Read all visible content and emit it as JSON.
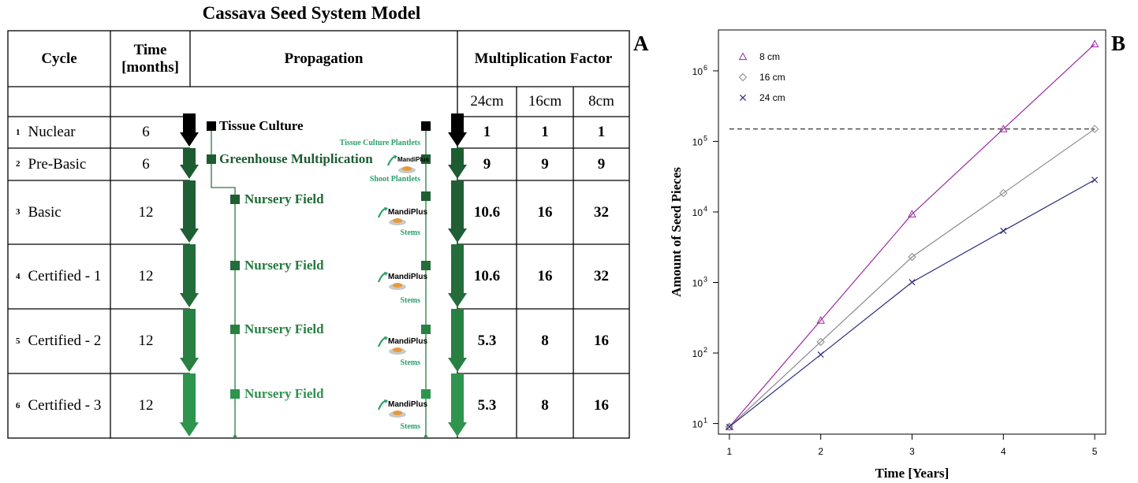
{
  "title": "Cassava Seed System Model",
  "panel_a": {
    "label": "A",
    "headers": {
      "cycle": "Cycle",
      "time_line1": "Time",
      "time_line2": "[months]",
      "propagation": "Propagation",
      "multiplication_factor": "Multiplication Factor",
      "sub": [
        "24cm",
        "16cm",
        "8cm"
      ]
    },
    "rows": [
      {
        "num": "1",
        "cycle": "Nuclear",
        "time": "6",
        "propagation": "Tissue Culture",
        "product": "Tissue Culture Plantlets",
        "factors": [
          "1",
          "1",
          "1"
        ],
        "color": "#000000"
      },
      {
        "num": "2",
        "cycle": "Pre-Basic",
        "time": "6",
        "propagation": "Greenhouse Multiplication",
        "product": "Shoot Plantlets",
        "factors": [
          "9",
          "9",
          "9"
        ],
        "color": "#1d5c31"
      },
      {
        "num": "3",
        "cycle": "Basic",
        "time": "12",
        "propagation": "Nursery Field",
        "product": "Stems",
        "factors": [
          "10.6",
          "16",
          "32"
        ],
        "color": "#1f5f33"
      },
      {
        "num": "4",
        "cycle": "Certified - 1",
        "time": "12",
        "propagation": "Nursery Field",
        "product": "Stems",
        "factors": [
          "10.6",
          "16",
          "32"
        ],
        "color": "#236d3a"
      },
      {
        "num": "5",
        "cycle": "Certified - 2",
        "time": "12",
        "propagation": "Nursery Field",
        "product": "Stems",
        "factors": [
          "5.3",
          "8",
          "16"
        ],
        "color": "#288043"
      },
      {
        "num": "6",
        "cycle": "Certified - 3",
        "time": "12",
        "propagation": "Nursery Field",
        "product": "Stems",
        "factors": [
          "5.3",
          "8",
          "16"
        ],
        "color": "#2e944e"
      }
    ],
    "logo_text": "MandiPlus"
  },
  "panel_b": {
    "label": "B",
    "chart_data": {
      "type": "line",
      "xlabel": "Time [Years]",
      "ylabel": "Amount of Seed Pieces",
      "log_y": true,
      "xlim": [
        1,
        5
      ],
      "ylim_exponent": [
        1,
        6
      ],
      "x": [
        1,
        2,
        3,
        4,
        5
      ],
      "x_ticks": [
        "1",
        "2",
        "3",
        "4",
        "5"
      ],
      "y_ticks": [
        "10",
        "10",
        "10",
        "10",
        "10",
        "10"
      ],
      "y_tick_exponents": [
        "1",
        "2",
        "3",
        "4",
        "5",
        "6"
      ],
      "reference_line": 150000,
      "legend_position": "top-left",
      "series": [
        {
          "name": "8 cm",
          "marker": "triangle",
          "color": "#9b2aa0",
          "values": [
            9,
            290,
            9300,
            150000,
            2400000
          ]
        },
        {
          "name": "16 cm",
          "marker": "diamond",
          "color": "#8a8a8a",
          "values": [
            9,
            144,
            2300,
            18500,
            150000
          ]
        },
        {
          "name": "24 cm",
          "marker": "x",
          "color": "#2b2b7a",
          "values": [
            9,
            95,
            1010,
            5400,
            28500
          ]
        }
      ]
    }
  }
}
